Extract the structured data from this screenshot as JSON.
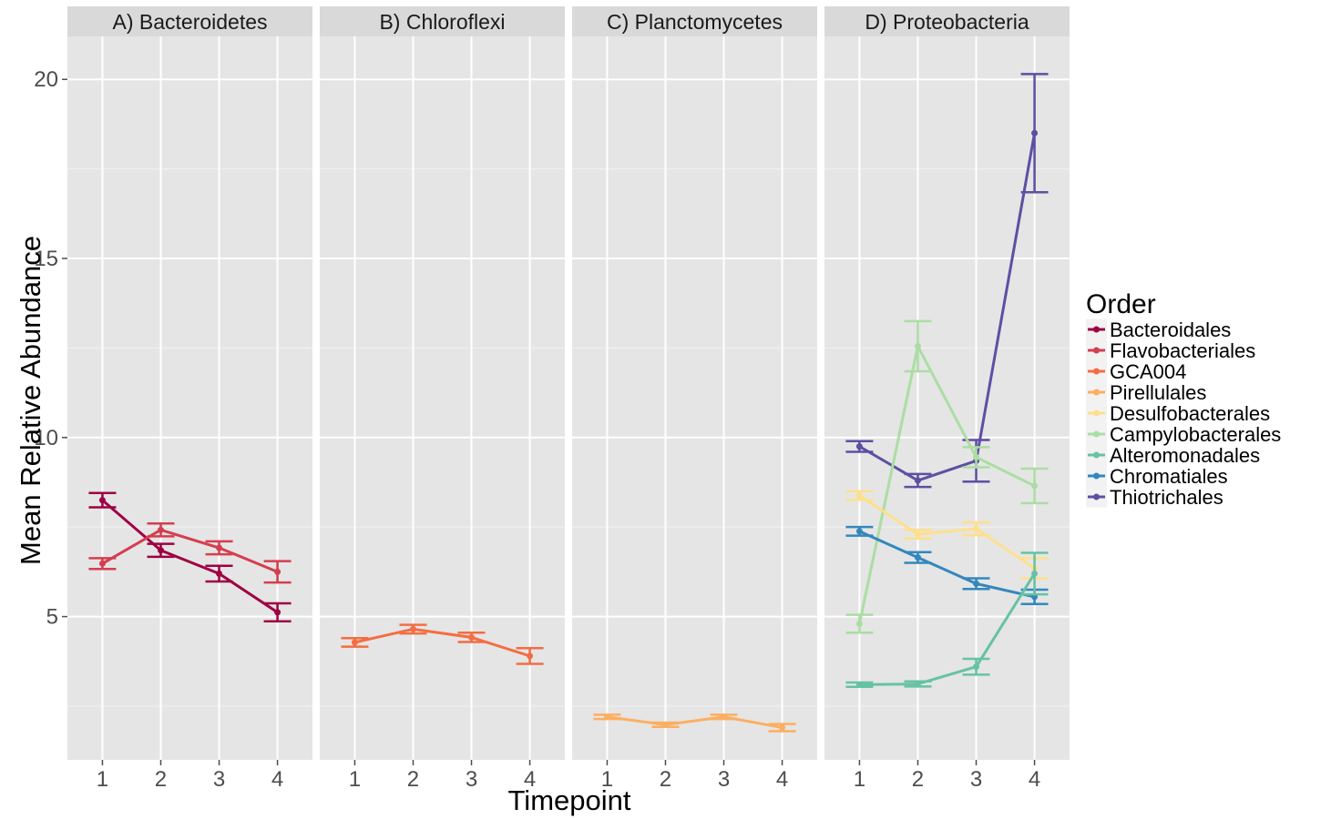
{
  "chart_data": {
    "type": "line",
    "xlabel": "Timepoint",
    "ylabel": "Mean Relative Abundance",
    "x": [
      1,
      2,
      3,
      4
    ],
    "ylim": [
      1.0,
      21.2
    ],
    "yticks": [
      5,
      10,
      15,
      20
    ],
    "grid": true,
    "legend_position": "right",
    "legend_title": "Order",
    "panels": [
      {
        "label": "A) Bacteroidetes",
        "series": [
          {
            "name": "Bacteroidales",
            "color": "#9e0142",
            "values": [
              8.25,
              6.85,
              6.2,
              5.12
            ],
            "err": [
              0.2,
              0.18,
              0.22,
              0.25
            ]
          },
          {
            "name": "Flavobacteriales",
            "color": "#d53e4f",
            "values": [
              6.48,
              7.42,
              6.92,
              6.25
            ],
            "err": [
              0.15,
              0.18,
              0.18,
              0.3
            ]
          }
        ]
      },
      {
        "label": "B) Chloroflexi",
        "series": [
          {
            "name": "GCA004",
            "color": "#f46d43",
            "values": [
              4.28,
              4.65,
              4.42,
              3.9
            ],
            "err": [
              0.12,
              0.12,
              0.13,
              0.22
            ]
          }
        ]
      },
      {
        "label": "C) Planctomycetes",
        "series": [
          {
            "name": "Pirellulales",
            "color": "#fdae61",
            "values": [
              2.2,
              1.98,
              2.2,
              1.9
            ],
            "err": [
              0.06,
              0.06,
              0.06,
              0.1
            ]
          }
        ]
      },
      {
        "label": "D) Proteobacteria",
        "series": [
          {
            "name": "Thiotrichales",
            "color": "#5e4fa2",
            "values": [
              9.75,
              8.8,
              9.35,
              18.5
            ],
            "err": [
              0.15,
              0.18,
              0.58,
              1.65
            ]
          },
          {
            "name": "Campylobacterales",
            "color": "#abdda4",
            "values": [
              4.8,
              12.55,
              9.45,
              8.65
            ],
            "err": [
              0.25,
              0.7,
              0.28,
              0.48
            ]
          },
          {
            "name": "Desulfobacterales",
            "color": "#fee08b",
            "values": [
              8.38,
              7.3,
              7.45,
              6.35
            ],
            "err": [
              0.12,
              0.12,
              0.18,
              0.28
            ]
          },
          {
            "name": "Chromatiales",
            "color": "#3288bd",
            "values": [
              7.38,
              6.65,
              5.92,
              5.55
            ],
            "err": [
              0.12,
              0.15,
              0.15,
              0.2
            ]
          },
          {
            "name": "Alteromonadales",
            "color": "#66c2a5",
            "values": [
              3.1,
              3.12,
              3.6,
              6.2
            ],
            "err": [
              0.06,
              0.07,
              0.22,
              0.58
            ]
          }
        ]
      }
    ],
    "legend": [
      {
        "name": "Bacteroidales",
        "color": "#9e0142"
      },
      {
        "name": "Flavobacteriales",
        "color": "#d53e4f"
      },
      {
        "name": "GCA004",
        "color": "#f46d43"
      },
      {
        "name": "Pirellulales",
        "color": "#fdae61"
      },
      {
        "name": "Desulfobacterales",
        "color": "#fee08b"
      },
      {
        "name": "Campylobacterales",
        "color": "#abdda4"
      },
      {
        "name": "Alteromonadales",
        "color": "#66c2a5"
      },
      {
        "name": "Chromatiales",
        "color": "#3288bd"
      },
      {
        "name": "Thiotrichales",
        "color": "#5e4fa2"
      }
    ]
  }
}
